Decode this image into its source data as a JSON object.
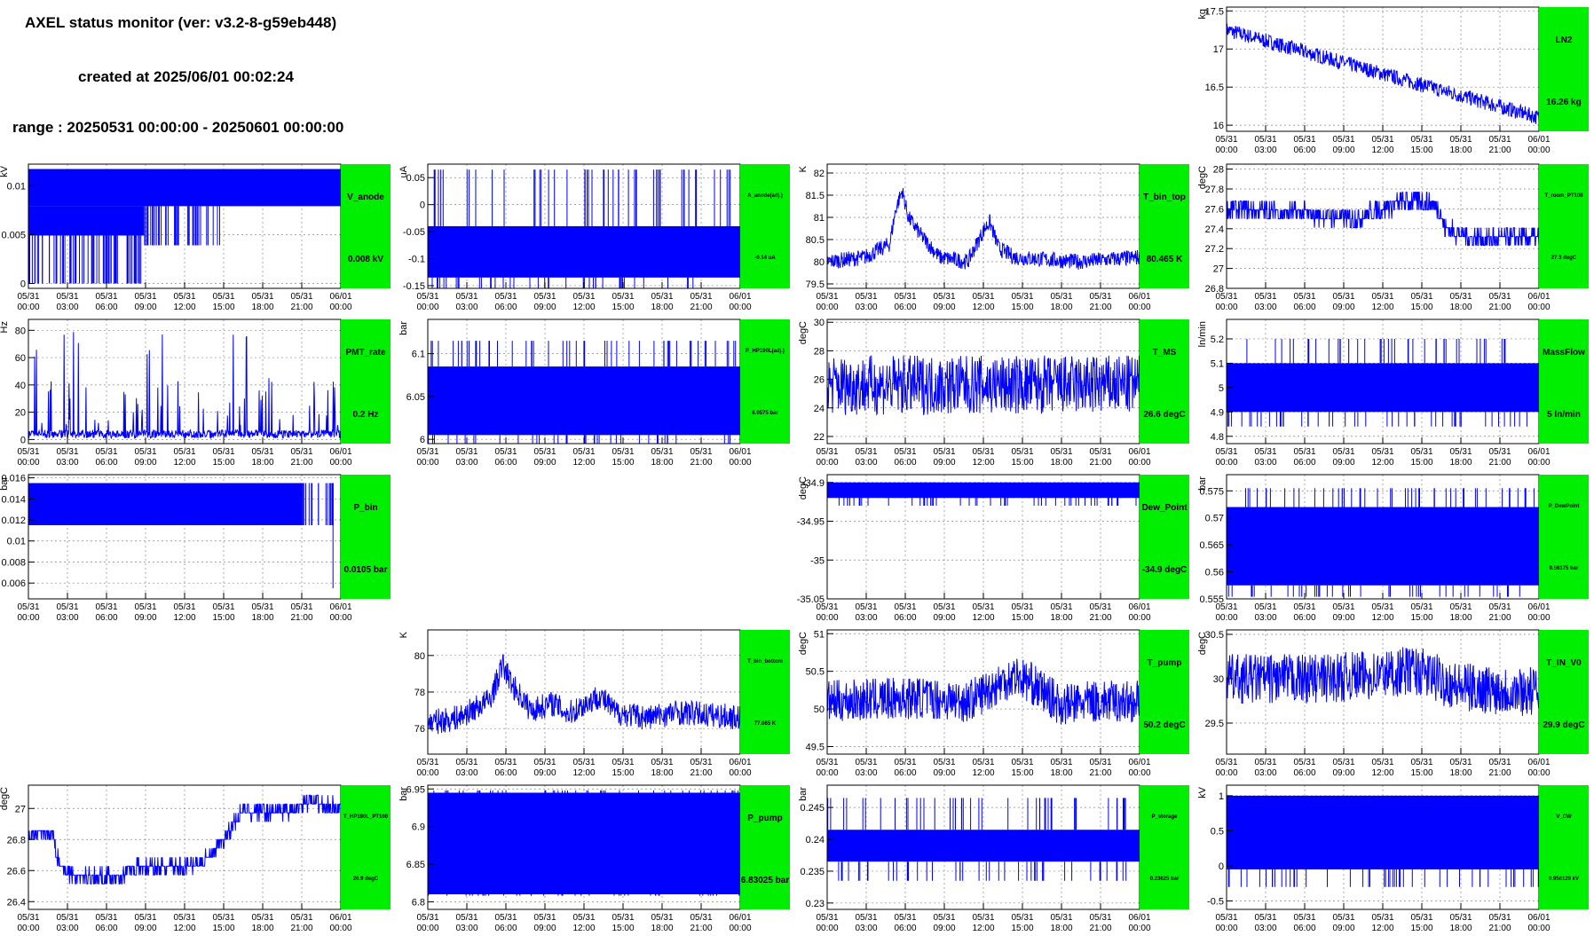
{
  "header": {
    "title": "AXEL status monitor (ver: v3.2-8-g59eb448)",
    "created": "created at 2025/06/01 00:02:24",
    "range": "range : 20250531 00:00:00 - 20250601 00:00:00"
  },
  "colors": {
    "series": "#0000ff",
    "badge": "#00ee00",
    "axis": "#000000",
    "grid": "#888888"
  },
  "x_ticks": [
    {
      "date": "05/31",
      "time": "00:00"
    },
    {
      "date": "05/31",
      "time": "03:00"
    },
    {
      "date": "05/31",
      "time": "06:00"
    },
    {
      "date": "05/31",
      "time": "09:00"
    },
    {
      "date": "05/31",
      "time": "12:00"
    },
    {
      "date": "05/31",
      "time": "15:00"
    },
    {
      "date": "05/31",
      "time": "18:00"
    },
    {
      "date": "05/31",
      "time": "21:00"
    },
    {
      "date": "06/01",
      "time": "00:00"
    }
  ],
  "chart_data": [
    {
      "id": "LN2",
      "type": "line",
      "name": "LN2",
      "value": "16.26 kg",
      "ylabel": "kg",
      "ylim": [
        15.92,
        17.55
      ],
      "yticks": [
        "16",
        "16.5",
        "17",
        "17.5"
      ],
      "yvals": [
        16,
        16.5,
        17,
        17.5
      ],
      "style": "trend",
      "trend": [
        17.25,
        16.1
      ],
      "band": 0.1,
      "grid": true
    },
    {
      "id": "V_anode",
      "type": "line",
      "name": "V_anode",
      "value": "0.008 kV",
      "ylabel": "kV",
      "ylim": [
        -0.0005,
        0.0122
      ],
      "yticks": [
        "0",
        "0.005",
        "0.01"
      ],
      "yvals": [
        0,
        0.005,
        0.01
      ],
      "style": "vanode",
      "grid": true
    },
    {
      "id": "A_anode",
      "type": "line",
      "name": "A_anode(adj.)",
      "value": "-0.14 uA",
      "small": true,
      "ylabel": "uA",
      "ylim": [
        -0.155,
        0.075
      ],
      "yticks": [
        "-0.15",
        "-0.1",
        "-0.05",
        "0",
        "0.05"
      ],
      "yvals": [
        -0.15,
        -0.1,
        -0.05,
        0,
        0.05
      ],
      "style": "band",
      "band_lo": -0.135,
      "band_hi": -0.04,
      "spikes_to": 0.065,
      "grid": true
    },
    {
      "id": "T_bin_top",
      "type": "line",
      "name": "T_bin_top",
      "value": "80.465 K",
      "ylabel": "K",
      "ylim": [
        79.4,
        82.2
      ],
      "yticks": [
        "79.5",
        "80",
        "80.5",
        "81",
        "81.5",
        "82"
      ],
      "yvals": [
        79.5,
        80,
        80.5,
        81,
        81.5,
        82
      ],
      "style": "noisy",
      "series": [
        [
          0,
          80.0
        ],
        [
          0.12,
          80.1
        ],
        [
          0.2,
          80.4
        ],
        [
          0.22,
          81.2
        ],
        [
          0.24,
          81.6
        ],
        [
          0.26,
          81.0
        ],
        [
          0.3,
          80.6
        ],
        [
          0.36,
          80.1
        ],
        [
          0.45,
          80.0
        ],
        [
          0.5,
          80.7
        ],
        [
          0.52,
          80.9
        ],
        [
          0.55,
          80.3
        ],
        [
          0.6,
          80.1
        ],
        [
          0.8,
          80.0
        ],
        [
          1,
          80.1
        ]
      ],
      "amp": 0.18,
      "grid": true
    },
    {
      "id": "T_room",
      "type": "line",
      "name": "T_room_PT100",
      "value": "27.3 degC",
      "small": true,
      "ylabel": "degC",
      "ylim": [
        26.8,
        28.05
      ],
      "yticks": [
        "26.8",
        "27",
        "27.2",
        "27.4",
        "27.6",
        "27.8",
        "28"
      ],
      "yvals": [
        26.8,
        27,
        27.2,
        27.4,
        27.6,
        27.8,
        28
      ],
      "style": "steps",
      "series": [
        [
          0,
          27.6
        ],
        [
          0.25,
          27.55
        ],
        [
          0.4,
          27.5
        ],
        [
          0.55,
          27.65
        ],
        [
          0.62,
          27.7
        ],
        [
          0.68,
          27.6
        ],
        [
          0.7,
          27.4
        ],
        [
          0.8,
          27.3
        ],
        [
          1,
          27.3
        ]
      ],
      "amp": 0.1,
      "grid": true
    },
    {
      "id": "PMT_rate",
      "type": "line",
      "name": "PMT_rate",
      "value": "0.2 Hz",
      "ylabel": "Hz",
      "ylim": [
        -3,
        88
      ],
      "yticks": [
        "0",
        "20",
        "40",
        "60",
        "80"
      ],
      "yvals": [
        0,
        20,
        40,
        60,
        80
      ],
      "style": "pmt",
      "grid": true
    },
    {
      "id": "P_HP",
      "type": "line",
      "name": "P_HP190L(adj.)",
      "value": "6.0575 bar",
      "small": true,
      "ylabel": "bar",
      "ylim": [
        5.995,
        6.14
      ],
      "yticks": [
        "6",
        "6.05",
        "6.1"
      ],
      "yvals": [
        6,
        6.05,
        6.1
      ],
      "style": "band",
      "band_lo": 6.005,
      "band_hi": 6.085,
      "spikes_to": 6.115,
      "grid": true
    },
    {
      "id": "T_MS",
      "type": "line",
      "name": "T_MS",
      "value": "26.6 degC",
      "ylabel": "degC",
      "ylim": [
        21.5,
        30.2
      ],
      "yticks": [
        "22",
        "24",
        "26",
        "28",
        "30"
      ],
      "yvals": [
        22,
        24,
        26,
        28,
        30
      ],
      "style": "noisy",
      "series": [
        [
          0,
          25.6
        ],
        [
          0.5,
          25.6
        ],
        [
          1,
          25.6
        ]
      ],
      "amp": 2.1,
      "grid": true
    },
    {
      "id": "MassFlow",
      "type": "line",
      "name": "MassFlow",
      "value": "5 ln/min",
      "ylabel": "ln/min",
      "ylim": [
        4.77,
        5.28
      ],
      "yticks": [
        "4.8",
        "4.9",
        "5",
        "5.1",
        "5.2"
      ],
      "yvals": [
        4.8,
        4.9,
        5,
        5.1,
        5.2
      ],
      "style": "band",
      "band_lo": 4.9,
      "band_hi": 5.1,
      "spikes_to": 5.2,
      "grid": true
    },
    {
      "id": "P_bin",
      "type": "line",
      "name": "P_bin",
      "value": "0.0105 bar",
      "ylabel": "bar",
      "ylim": [
        0.0045,
        0.0163
      ],
      "yticks": [
        "0.006",
        "0.008",
        "0.01",
        "0.012",
        "0.014",
        "0.016"
      ],
      "yvals": [
        0.006,
        0.008,
        0.01,
        0.012,
        0.014,
        0.016
      ],
      "style": "pbin",
      "grid": true
    },
    {
      "id": "Dew_Point",
      "type": "line",
      "name": "Dew_Point",
      "value": "-34.9 degC",
      "ylabel": "degC",
      "ylim": [
        -35.05,
        -34.89
      ],
      "yticks": [
        "-34.9",
        "-34.95",
        "-35",
        "-35.05"
      ],
      "yvals": [
        -34.9,
        -34.95,
        -35,
        -35.05
      ],
      "style": "band",
      "band_lo": -34.92,
      "band_hi": -34.9,
      "spikes_to": -34.93,
      "grid": true
    },
    {
      "id": "P_DewPoint",
      "type": "line",
      "name": "P_DewPoint",
      "value": "0.56175 bar",
      "small": true,
      "ylabel": "bar",
      "ylim": [
        0.555,
        0.578
      ],
      "yticks": [
        "0.555",
        "0.56",
        "0.565",
        "0.57",
        "0.575"
      ],
      "yvals": [
        0.555,
        0.56,
        0.565,
        0.57,
        0.575
      ],
      "style": "band",
      "band_lo": 0.5575,
      "band_hi": 0.572,
      "spikes_to": 0.5755,
      "grid": true
    },
    {
      "id": "T_bin_bottom",
      "type": "line",
      "name": "T_bin_bottom",
      "value": "77.065 K",
      "small": true,
      "ylabel": "K",
      "ylim": [
        74.6,
        81.4
      ],
      "yticks": [
        "76",
        "78",
        "80"
      ],
      "yvals": [
        76,
        78,
        80
      ],
      "style": "noisy",
      "series": [
        [
          0,
          76.3
        ],
        [
          0.1,
          76.6
        ],
        [
          0.2,
          77.6
        ],
        [
          0.24,
          79.5
        ],
        [
          0.27,
          78.4
        ],
        [
          0.33,
          77.0
        ],
        [
          0.4,
          77.4
        ],
        [
          0.45,
          76.8
        ],
        [
          0.55,
          77.8
        ],
        [
          0.6,
          76.9
        ],
        [
          0.7,
          76.6
        ],
        [
          0.8,
          76.9
        ],
        [
          1,
          76.6
        ]
      ],
      "amp": 0.7,
      "grid": true
    },
    {
      "id": "T_pump",
      "type": "line",
      "name": "T_pump",
      "value": "50.2 degC",
      "ylabel": "degC",
      "ylim": [
        49.4,
        51.05
      ],
      "yticks": [
        "49.5",
        "50",
        "50.5",
        "51"
      ],
      "yvals": [
        49.5,
        50,
        50.5,
        51
      ],
      "style": "noisy",
      "series": [
        [
          0,
          50.1
        ],
        [
          0.3,
          50.15
        ],
        [
          0.45,
          50.1
        ],
        [
          0.6,
          50.45
        ],
        [
          0.65,
          50.35
        ],
        [
          0.75,
          50.05
        ],
        [
          0.85,
          50.1
        ],
        [
          1,
          50.1
        ]
      ],
      "amp": 0.28,
      "grid": true
    },
    {
      "id": "T_IN_V0",
      "type": "line",
      "name": "T_IN_V0",
      "value": "29.9 degC",
      "ylabel": "degC",
      "ylim": [
        29.15,
        30.55
      ],
      "yticks": [
        "29.5",
        "30",
        "30.5"
      ],
      "yvals": [
        29.5,
        30,
        30.5
      ],
      "style": "noisy",
      "series": [
        [
          0,
          30.0
        ],
        [
          0.2,
          30.0
        ],
        [
          0.3,
          30.0
        ],
        [
          0.5,
          30.05
        ],
        [
          0.6,
          30.1
        ],
        [
          0.75,
          29.9
        ],
        [
          1,
          29.85
        ]
      ],
      "amp": 0.28,
      "grid": true
    },
    {
      "id": "T_HP",
      "type": "line",
      "name": "T_HP190L_PT100",
      "value": "26.9 degC",
      "small": true,
      "ylabel": "degC",
      "ylim": [
        26.35,
        27.15
      ],
      "yticks": [
        "26.4",
        "26.6",
        "26.8",
        "27"
      ],
      "yvals": [
        26.4,
        26.6,
        26.8,
        27
      ],
      "style": "steps",
      "series": [
        [
          0,
          26.83
        ],
        [
          0.08,
          26.83
        ],
        [
          0.1,
          26.63
        ],
        [
          0.15,
          26.56
        ],
        [
          0.3,
          26.56
        ],
        [
          0.32,
          26.62
        ],
        [
          0.5,
          26.62
        ],
        [
          0.58,
          26.68
        ],
        [
          0.62,
          26.78
        ],
        [
          0.68,
          26.98
        ],
        [
          0.85,
          26.98
        ],
        [
          0.88,
          27.05
        ],
        [
          1,
          27.0
        ]
      ],
      "amp": 0.05,
      "grid": true
    },
    {
      "id": "P_pump",
      "type": "line",
      "name": "P_pump",
      "value": "6.83025 bar",
      "ylabel": "bar",
      "ylim": [
        6.79,
        6.955
      ],
      "yticks": [
        "6.8",
        "6.85",
        "6.9",
        "6.95"
      ],
      "yvals": [
        6.8,
        6.85,
        6.9,
        6.95
      ],
      "style": "band",
      "band_lo": 6.81,
      "band_hi": 6.945,
      "spikes_to": 6.948,
      "grid": true
    },
    {
      "id": "P_storage",
      "type": "line",
      "name": "P_storage",
      "value": "0.23625 bar",
      "small": true,
      "ylabel": "bar",
      "ylim": [
        0.229,
        0.2485
      ],
      "yticks": [
        "0.23",
        "0.235",
        "0.24",
        "0.245"
      ],
      "yvals": [
        0.23,
        0.235,
        0.24,
        0.245
      ],
      "style": "band",
      "band_lo": 0.2365,
      "band_hi": 0.2415,
      "spikes_to": 0.2465,
      "grid": true
    },
    {
      "id": "V_CW",
      "type": "line",
      "name": "V_CW",
      "value": "0.956129 kV",
      "small": true,
      "ylabel": "kV",
      "ylim": [
        -0.62,
        1.15
      ],
      "yticks": [
        "-0.5",
        "0",
        "0.5",
        "1"
      ],
      "yvals": [
        -0.5,
        0,
        0.5,
        1
      ],
      "style": "band",
      "band_lo": -0.05,
      "band_hi": 1.0,
      "spikes_to": -0.3,
      "grid": true
    }
  ]
}
